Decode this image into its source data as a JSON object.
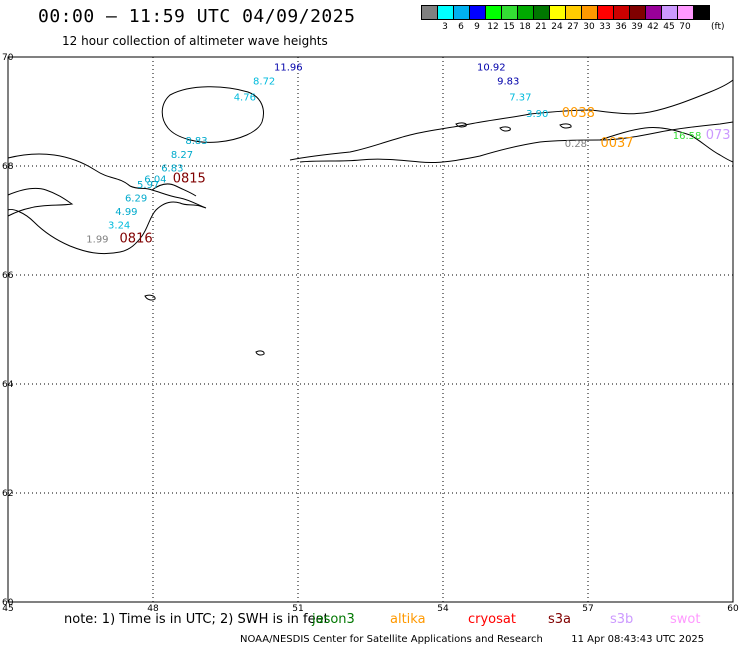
{
  "header": {
    "title": "00:00 – 11:59 UTC 04/09/2025",
    "subtitle": "12 hour collection of altimeter wave heights"
  },
  "legend": {
    "unit": "(ft)",
    "items": [
      {
        "label": "",
        "color": "#808080"
      },
      {
        "label": "3",
        "color": "#00ffff"
      },
      {
        "label": "6",
        "color": "#00b0f0"
      },
      {
        "label": "9",
        "color": "#0000ff"
      },
      {
        "label": "12",
        "color": "#00ff00"
      },
      {
        "label": "15",
        "color": "#33dd33"
      },
      {
        "label": "18",
        "color": "#00aa00"
      },
      {
        "label": "21",
        "color": "#007700"
      },
      {
        "label": "24",
        "color": "#ffff00"
      },
      {
        "label": "27",
        "color": "#ffcc00"
      },
      {
        "label": "30",
        "color": "#ff9900"
      },
      {
        "label": "33",
        "color": "#ff0000"
      },
      {
        "label": "36",
        "color": "#cc0000"
      },
      {
        "label": "39",
        "color": "#800000"
      },
      {
        "label": "42",
        "color": "#990099"
      },
      {
        "label": "45",
        "color": "#cc99ff"
      },
      {
        "label": "70",
        "color": "#ff99ff"
      },
      {
        "label": "",
        "color": "#000000"
      }
    ]
  },
  "map": {
    "lon_range": [
      45,
      60
    ],
    "lat_range": [
      60,
      70
    ],
    "lon_ticks": [
      "45",
      "48",
      "51",
      "54",
      "57",
      "60"
    ],
    "lat_ticks": [
      "70",
      "68",
      "66",
      "64",
      "62",
      "60"
    ]
  },
  "observations": [
    {
      "text": "11.96",
      "color": "#0000aa",
      "lon": 50.8,
      "lat": 69.75
    },
    {
      "text": "8.72",
      "color": "#00bbdd",
      "lon": 50.3,
      "lat": 69.5
    },
    {
      "text": "4.76",
      "color": "#00bbdd",
      "lon": 49.9,
      "lat": 69.2
    },
    {
      "text": "8.83",
      "color": "#00aacc",
      "lon": 48.9,
      "lat": 68.4
    },
    {
      "text": "8.27",
      "color": "#00aacc",
      "lon": 48.6,
      "lat": 68.15
    },
    {
      "text": "6.83",
      "color": "#00aacc",
      "lon": 48.4,
      "lat": 67.9
    },
    {
      "text": "6.04",
      "color": "#00aacc",
      "lon": 48.05,
      "lat": 67.7
    },
    {
      "text": "0815",
      "color": "#800000",
      "lon": 48.75,
      "lat": 67.7
    },
    {
      "text": "5.97",
      "color": "#00aacc",
      "lon": 47.9,
      "lat": 67.6
    },
    {
      "text": "6.29",
      "color": "#00aacc",
      "lon": 47.65,
      "lat": 67.35
    },
    {
      "text": "4.99",
      "color": "#00aacc",
      "lon": 47.45,
      "lat": 67.1
    },
    {
      "text": "3.24",
      "color": "#00bbdd",
      "lon": 47.3,
      "lat": 66.85
    },
    {
      "text": "1.99",
      "color": "#808080",
      "lon": 46.85,
      "lat": 66.6
    },
    {
      "text": "0816",
      "color": "#800000",
      "lon": 47.65,
      "lat": 66.6
    },
    {
      "text": "10.92",
      "color": "#0000aa",
      "lon": 55.0,
      "lat": 69.75
    },
    {
      "text": "9.83",
      "color": "#0000aa",
      "lon": 55.35,
      "lat": 69.5
    },
    {
      "text": "7.37",
      "color": "#00bbdd",
      "lon": 55.6,
      "lat": 69.2
    },
    {
      "text": "3.90",
      "color": "#00bbdd",
      "lon": 55.95,
      "lat": 68.9
    },
    {
      "text": "0038",
      "color": "#ff9900",
      "lon": 56.8,
      "lat": 68.9
    },
    {
      "text": "0.28",
      "color": "#808080",
      "lon": 56.75,
      "lat": 68.35
    },
    {
      "text": "0037",
      "color": "#ff9900",
      "lon": 57.6,
      "lat": 68.35
    },
    {
      "text": "16.58",
      "color": "#33dd33",
      "lon": 59.05,
      "lat": 68.5
    },
    {
      "text": "073",
      "color": "#cc99ff",
      "lon": 59.95,
      "lat": 68.5
    }
  ],
  "footer": {
    "note": "note: 1) Time is in UTC; 2) SWH is in feet",
    "missions": [
      {
        "name": "jason3",
        "color": "#007700"
      },
      {
        "name": "altika",
        "color": "#ff9900"
      },
      {
        "name": "cryosat",
        "color": "#ff0000"
      },
      {
        "name": "s3a",
        "color": "#800000"
      },
      {
        "name": "s3b",
        "color": "#cc99ff"
      },
      {
        "name": "swot",
        "color": "#ff99ff"
      }
    ],
    "credit": "NOAA/NESDIS Center for Satellite Applications and Research",
    "timestamp": "11 Apr 08:43:43 UTC 2025"
  }
}
